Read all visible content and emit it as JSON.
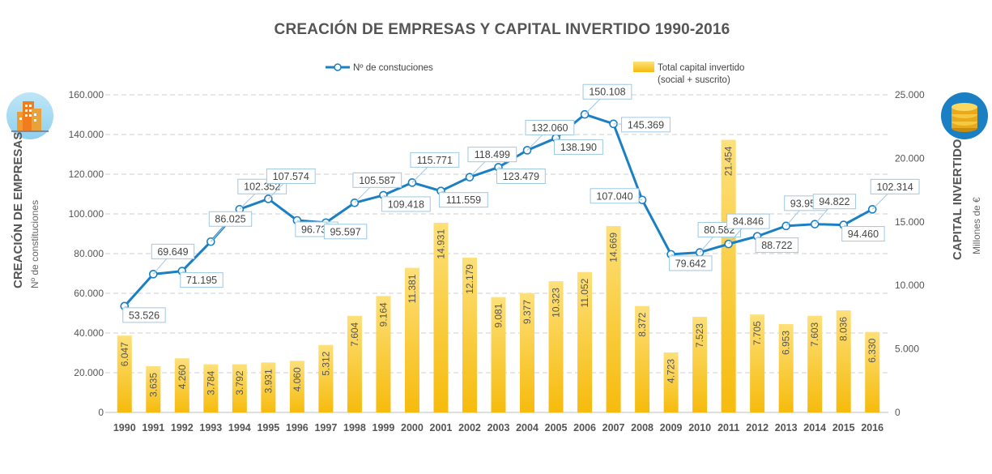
{
  "chart_data": {
    "type": "bar+line",
    "title": "CREACIÓN DE EMPRESAS Y CAPITAL INVERTIDO 1990-2016",
    "categories": [
      "1990",
      "1991",
      "1992",
      "1993",
      "1994",
      "1995",
      "1996",
      "1997",
      "1998",
      "1999",
      "2000",
      "2001",
      "2002",
      "2003",
      "2004",
      "2005",
      "2006",
      "2007",
      "2008",
      "2009",
      "2010",
      "2011",
      "2012",
      "2013",
      "2014",
      "2015",
      "2016"
    ],
    "line_series": {
      "name": "Nº de constuciones",
      "color": "#1a7fc3",
      "values": [
        53526,
        69649,
        71195,
        86025,
        102352,
        107574,
        96734,
        95597,
        105587,
        109418,
        115771,
        111559,
        118499,
        123479,
        132060,
        138190,
        150108,
        145369,
        107040,
        79642,
        80582,
        84846,
        88722,
        93950,
        94822,
        94460,
        102314
      ],
      "labels": [
        "53.526",
        "69.649",
        "71.195",
        "86.025",
        "102.352",
        "107.574",
        "96.734",
        "95.597",
        "105.587",
        "109.418",
        "115.771",
        "111.559",
        "118.499",
        "123.479",
        "132.060",
        "138.190",
        "150.108",
        "145.369",
        "107.040",
        "79.642",
        "80.582",
        "84.846",
        "88.722",
        "93.950",
        "94.822",
        "94.460",
        "102.314"
      ]
    },
    "bar_series": {
      "name": "Total capital invertido (social + suscrito)",
      "legend_lines": [
        "Total capital invertido",
        "(social + suscrito)"
      ],
      "color": "#f7c21e",
      "values": [
        6047,
        3635,
        4260,
        3784,
        3792,
        3931,
        4060,
        5312,
        7604,
        9164,
        11381,
        14931,
        12179,
        9081,
        9377,
        10323,
        11052,
        14669,
        8372,
        4723,
        7523,
        21454,
        7705,
        6953,
        7603,
        8036,
        6330
      ],
      "labels": [
        "6.047",
        "3.635",
        "4.260",
        "3.784",
        "3.792",
        "3.931",
        "4.060",
        "5.312",
        "7.604",
        "9.164",
        "11.381",
        "14.931",
        "12.179",
        "9.081",
        "9.377",
        "10.323",
        "11.052",
        "14.669",
        "8.372",
        "4.723",
        "7.523",
        "21.454",
        "7.705",
        "6.953",
        "7.603",
        "8.036",
        "6.330"
      ]
    },
    "y_left": {
      "title": "CREACIÓN DE EMPRESAS",
      "subtitle": "Nº de constituciones",
      "ylim": [
        0,
        160000
      ],
      "ticks": [
        0,
        20000,
        40000,
        60000,
        80000,
        100000,
        120000,
        140000,
        160000
      ],
      "tick_labels": [
        "0",
        "20.000",
        "40.000",
        "60.000",
        "80.000",
        "100.000",
        "120.000",
        "140.000",
        "160.000"
      ]
    },
    "y_right": {
      "title": "CAPITAL INVERTIDO",
      "subtitle": "Millones de €",
      "ylim": [
        0,
        25000
      ],
      "ticks": [
        0,
        5000,
        10000,
        15000,
        20000,
        25000
      ],
      "tick_labels": [
        "0",
        "5.000",
        "10.000",
        "15.000",
        "20.000",
        "25.000"
      ]
    },
    "grid": true,
    "legend_position": "top"
  },
  "icons": {
    "left": "buildings-icon",
    "right": "coins-icon"
  }
}
